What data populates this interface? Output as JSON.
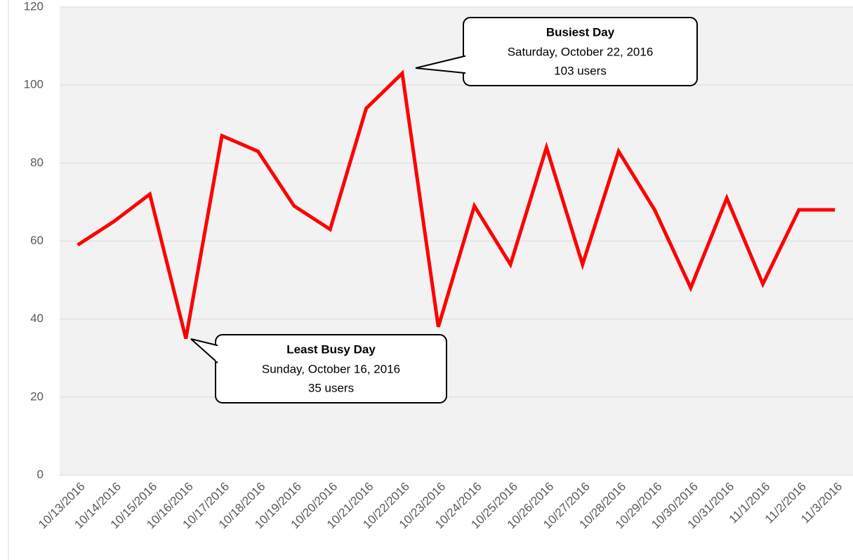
{
  "chart_data": {
    "type": "line",
    "categories": [
      "10/13/2016",
      "10/14/2016",
      "10/15/2016",
      "10/16/2016",
      "10/17/2016",
      "10/18/2016",
      "10/19/2016",
      "10/20/2016",
      "10/21/2016",
      "10/22/2016",
      "10/23/2016",
      "10/24/2016",
      "10/25/2016",
      "10/26/2016",
      "10/27/2016",
      "10/28/2016",
      "10/29/2016",
      "10/30/2016",
      "10/31/2016",
      "11/1/2016",
      "11/2/2016",
      "11/3/2016"
    ],
    "values": [
      59,
      65,
      72,
      35,
      87,
      83,
      69,
      63,
      94,
      103,
      38,
      69,
      54,
      84,
      54,
      83,
      68,
      48,
      71,
      49,
      68,
      68
    ],
    "color": "#ff0000",
    "ylim": [
      0,
      120
    ],
    "yticks": [
      0,
      20,
      40,
      60,
      80,
      100,
      120
    ],
    "grid": true,
    "annotations": [
      {
        "title": "Busiest Day",
        "lines": [
          "Saturday, October 22, 2016",
          "103 users"
        ]
      },
      {
        "title": "Least Busy Day",
        "lines": [
          "Sunday, October 16, 2016",
          "35 users"
        ]
      }
    ]
  }
}
